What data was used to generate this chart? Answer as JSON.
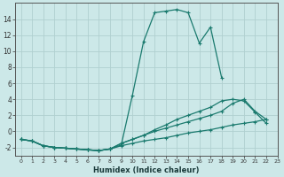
{
  "xlabel": "Humidex (Indice chaleur)",
  "x": [
    0,
    1,
    2,
    3,
    4,
    5,
    6,
    7,
    8,
    9,
    10,
    11,
    12,
    13,
    14,
    15,
    16,
    17,
    18,
    19,
    20,
    21,
    22,
    23
  ],
  "line_top": [
    -1.0,
    -1.2,
    -1.8,
    -2.0,
    -2.1,
    -2.2,
    -2.3,
    -2.4,
    -2.2,
    -1.7,
    4.5,
    11.2,
    14.8,
    15.0,
    15.2,
    14.8,
    11.0,
    13.0,
    6.7,
    null,
    null,
    null,
    null,
    null
  ],
  "line_mid1": [
    -1.0,
    -1.2,
    -1.8,
    -2.0,
    -2.1,
    -2.2,
    -2.3,
    -2.4,
    -2.2,
    -1.5,
    -1.0,
    -0.5,
    0.2,
    0.8,
    1.5,
    2.0,
    2.5,
    3.0,
    3.8,
    4.0,
    3.8,
    2.4,
    1.0,
    null
  ],
  "line_mid2": [
    -1.0,
    -1.2,
    -1.8,
    -2.0,
    -2.1,
    -2.2,
    -2.3,
    -2.4,
    -2.2,
    -1.5,
    -1.0,
    -0.5,
    0.0,
    0.4,
    0.8,
    1.2,
    1.6,
    2.0,
    2.5,
    3.5,
    4.0,
    2.5,
    1.5,
    null
  ],
  "line_bot": [
    -1.0,
    -1.2,
    -1.8,
    -2.0,
    -2.1,
    -2.2,
    -2.3,
    -2.4,
    -2.2,
    -1.8,
    -1.5,
    -1.2,
    -1.0,
    -0.8,
    -0.5,
    -0.2,
    0.0,
    0.2,
    0.5,
    0.8,
    1.0,
    1.2,
    1.5,
    null
  ],
  "color": "#1a7a6e",
  "bg_color": "#cce8e8",
  "grid_color": "#b0d0d0",
  "ylim": [
    -3,
    16
  ],
  "xlim": [
    -0.5,
    23
  ]
}
